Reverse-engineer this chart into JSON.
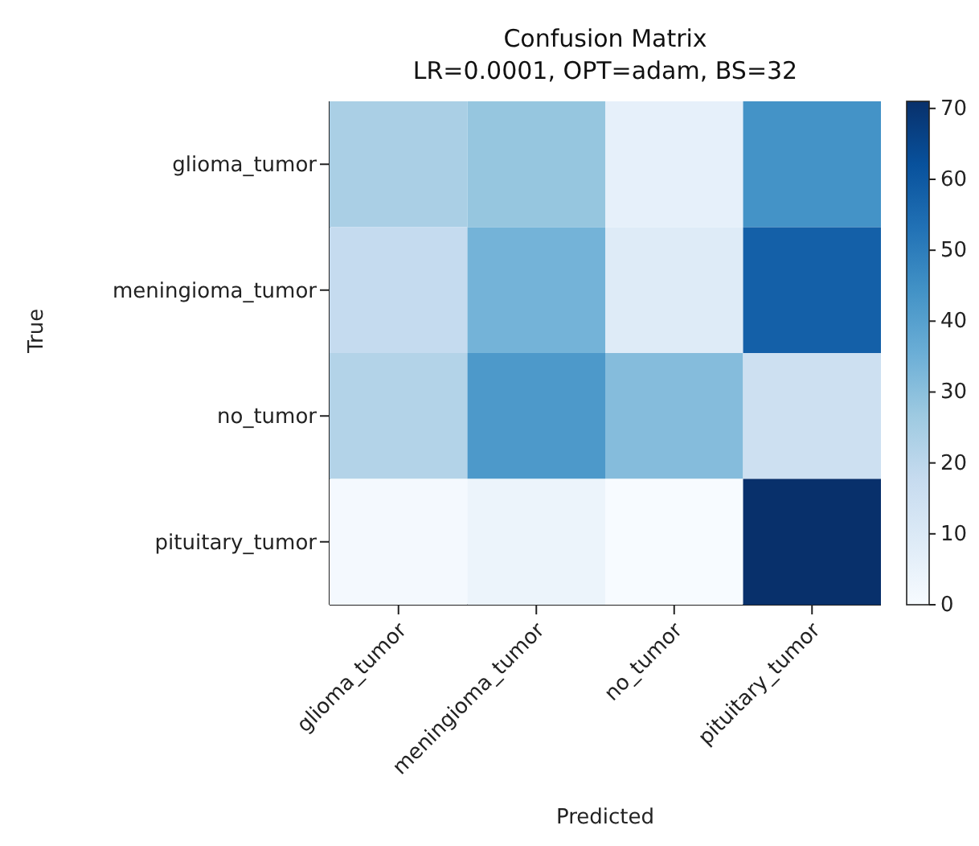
{
  "chart_data": {
    "type": "heatmap",
    "title": "Confusion Matrix",
    "subtitle": "LR=0.0001, OPT=adam, BS=32",
    "xlabel": "Predicted",
    "ylabel": "True",
    "categories": [
      "glioma_tumor",
      "meningioma_tumor",
      "no_tumor",
      "pituitary_tumor"
    ],
    "y_categories": [
      "glioma_tumor",
      "meningioma_tumor",
      "no_tumor",
      "pituitary_tumor"
    ],
    "cells": [
      [
        24,
        28,
        6,
        44
      ],
      [
        18,
        34,
        9,
        58
      ],
      [
        22,
        42,
        31,
        15
      ],
      [
        1,
        4,
        0,
        71
      ]
    ],
    "clim": [
      0,
      71
    ],
    "cticks": [
      0,
      10,
      20,
      30,
      40,
      50,
      60,
      70
    ]
  }
}
